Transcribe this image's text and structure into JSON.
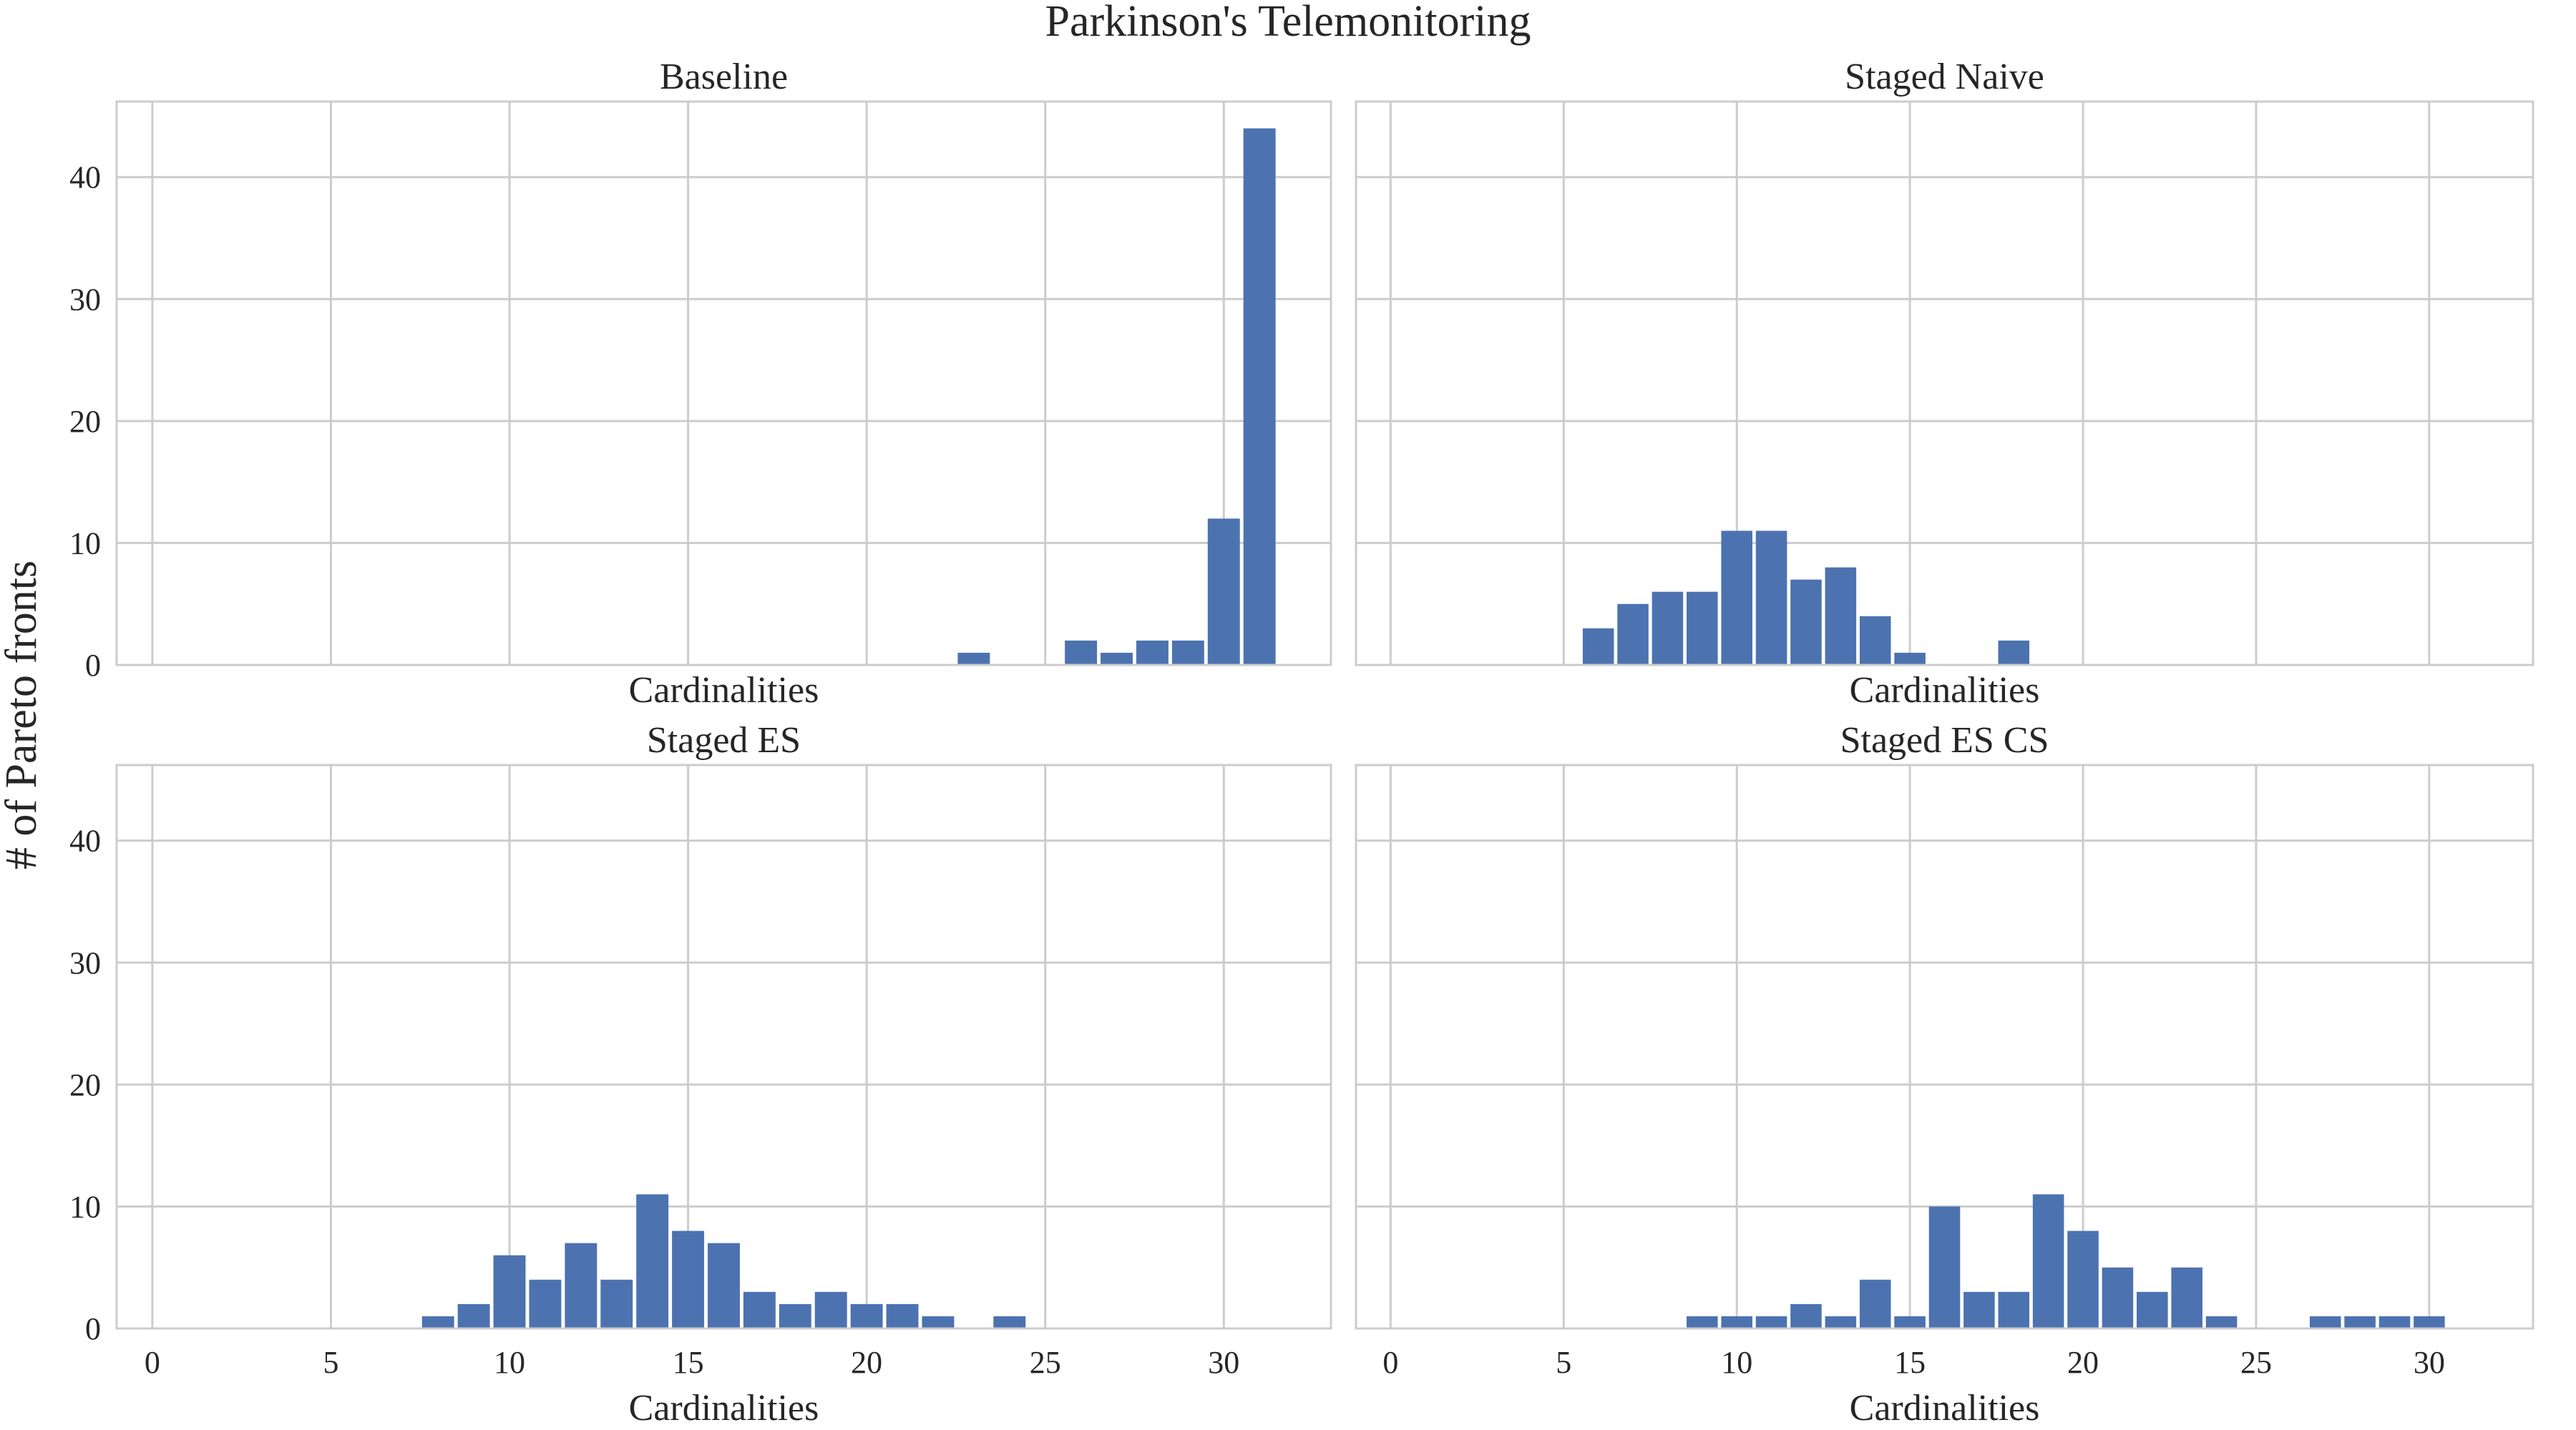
{
  "figure": {
    "title": "Parkinson's Telemonitoring",
    "ylabel": "# of Pareto fronts"
  },
  "colors": {
    "bar": "#4c72b0",
    "grid": "#cccccc",
    "frame": "#cccccc",
    "text": "#262626",
    "background": "#ffffff"
  },
  "chart_data": [
    {
      "type": "bar",
      "title": "Baseline",
      "xlabel": "Cardinalities",
      "ylabel": "# of Pareto fronts",
      "xlim": [
        -1,
        33
      ],
      "ylim": [
        0,
        46.2
      ],
      "xticks": [
        0,
        5,
        10,
        15,
        20,
        25,
        30
      ],
      "yticks": [
        0,
        10,
        20,
        30,
        40
      ],
      "grid": true,
      "show_xtick_labels": false,
      "show_ytick_labels": true,
      "x": [
        23,
        26,
        27,
        28,
        29,
        30,
        31
      ],
      "values": [
        1,
        2,
        1,
        2,
        2,
        12,
        44
      ]
    },
    {
      "type": "bar",
      "title": "Staged Naive",
      "xlabel": "Cardinalities",
      "ylabel": "",
      "xlim": [
        -1,
        33
      ],
      "ylim": [
        0,
        46.2
      ],
      "xticks": [
        0,
        5,
        10,
        15,
        20,
        25,
        30
      ],
      "yticks": [
        0,
        10,
        20,
        30,
        40
      ],
      "grid": true,
      "show_xtick_labels": false,
      "show_ytick_labels": false,
      "x": [
        6,
        7,
        8,
        9,
        10,
        11,
        12,
        13,
        14,
        15,
        18
      ],
      "values": [
        3,
        5,
        6,
        6,
        11,
        11,
        7,
        8,
        4,
        1,
        2
      ]
    },
    {
      "type": "bar",
      "title": "Staged ES",
      "xlabel": "Cardinalities",
      "ylabel": "",
      "xlim": [
        -1,
        33
      ],
      "ylim": [
        0,
        46.2
      ],
      "xticks": [
        0,
        5,
        10,
        15,
        20,
        25,
        30
      ],
      "yticks": [
        0,
        10,
        20,
        30,
        40
      ],
      "grid": true,
      "show_xtick_labels": true,
      "show_ytick_labels": true,
      "x": [
        8,
        9,
        10,
        11,
        12,
        13,
        14,
        15,
        16,
        17,
        18,
        19,
        20,
        21,
        22,
        24
      ],
      "values": [
        1,
        2,
        6,
        4,
        7,
        4,
        11,
        8,
        7,
        3,
        2,
        3,
        2,
        2,
        1,
        1
      ]
    },
    {
      "type": "bar",
      "title": "Staged ES CS",
      "xlabel": "Cardinalities",
      "ylabel": "",
      "xlim": [
        -1,
        33
      ],
      "ylim": [
        0,
        46.2
      ],
      "xticks": [
        0,
        5,
        10,
        15,
        20,
        25,
        30
      ],
      "yticks": [
        0,
        10,
        20,
        30,
        40
      ],
      "grid": true,
      "show_xtick_labels": true,
      "show_ytick_labels": false,
      "x": [
        9,
        10,
        11,
        12,
        13,
        14,
        15,
        16,
        17,
        18,
        19,
        20,
        21,
        22,
        23,
        24,
        27,
        28,
        29,
        30
      ],
      "values": [
        1,
        1,
        1,
        2,
        1,
        4,
        1,
        10,
        3,
        3,
        11,
        8,
        5,
        3,
        5,
        1,
        1,
        1,
        1,
        1
      ]
    }
  ]
}
